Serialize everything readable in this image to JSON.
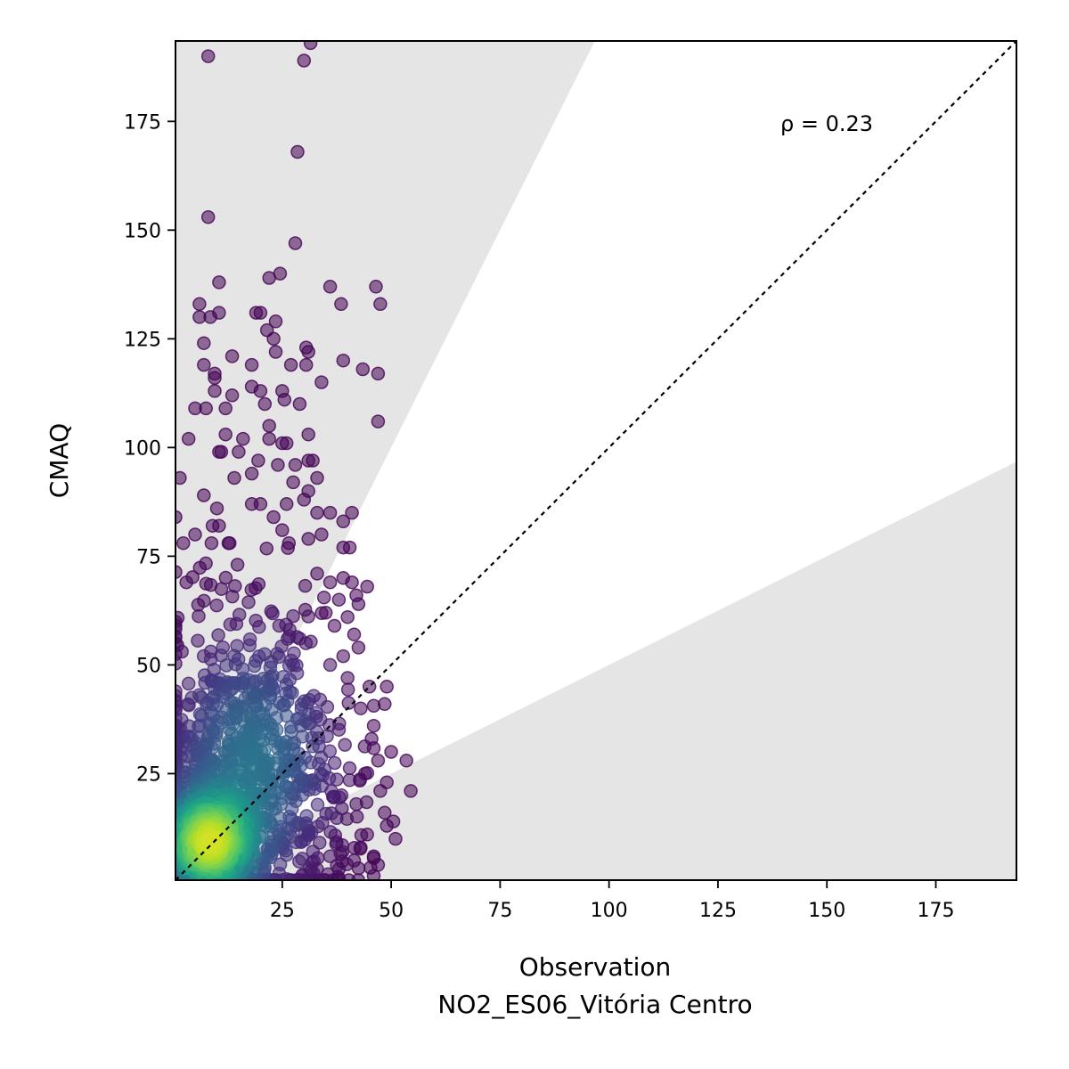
{
  "chart_data": {
    "type": "scatter",
    "xlabel": "Observation",
    "xlabel_sub": "NO2_ES06_Vitória Centro",
    "ylabel": "CMAQ",
    "annotation": "ρ = 0.23",
    "xlim": [
      0.5,
      193.5
    ],
    "ylim": [
      0.5,
      193.5
    ],
    "x_ticks": [
      25,
      50,
      75,
      100,
      125,
      150,
      175
    ],
    "y_ticks": [
      25,
      50,
      75,
      100,
      125,
      150,
      175
    ],
    "identity_line": true,
    "shaded_regions": "outside factor-of-2 cone (y > 2x and y < x/2)",
    "colormap": "viridis (point density)",
    "colors": {
      "shade": "#e5e5e5",
      "low_density": "#440154",
      "high_density": "#fde725"
    },
    "points": [
      {
        "x": 8,
        "y": 190
      },
      {
        "x": 30,
        "y": 189
      },
      {
        "x": 31.5,
        "y": 193
      },
      {
        "x": 28.5,
        "y": 168
      },
      {
        "x": 8,
        "y": 153
      },
      {
        "x": 28,
        "y": 147
      },
      {
        "x": 22,
        "y": 139
      },
      {
        "x": 24.5,
        "y": 140
      },
      {
        "x": 10.5,
        "y": 138
      },
      {
        "x": 36,
        "y": 137
      },
      {
        "x": 46.5,
        "y": 137
      },
      {
        "x": 6,
        "y": 133
      },
      {
        "x": 47.5,
        "y": 133
      },
      {
        "x": 38.5,
        "y": 133
      },
      {
        "x": 10.5,
        "y": 131
      },
      {
        "x": 8.5,
        "y": 130
      },
      {
        "x": 6,
        "y": 130
      },
      {
        "x": 19,
        "y": 131
      },
      {
        "x": 20,
        "y": 131
      },
      {
        "x": 23.5,
        "y": 129
      },
      {
        "x": 21.5,
        "y": 127
      },
      {
        "x": 23,
        "y": 125
      },
      {
        "x": 7,
        "y": 124
      },
      {
        "x": 30.5,
        "y": 123
      },
      {
        "x": 31,
        "y": 122
      },
      {
        "x": 23.5,
        "y": 122
      },
      {
        "x": 13.5,
        "y": 121
      },
      {
        "x": 39,
        "y": 120
      },
      {
        "x": 7,
        "y": 119
      },
      {
        "x": 18,
        "y": 119
      },
      {
        "x": 27,
        "y": 119
      },
      {
        "x": 30.5,
        "y": 119
      },
      {
        "x": 43.5,
        "y": 118
      },
      {
        "x": 47,
        "y": 117
      },
      {
        "x": 9.5,
        "y": 117
      },
      {
        "x": 9.5,
        "y": 116
      },
      {
        "x": 18,
        "y": 114
      },
      {
        "x": 20,
        "y": 113
      },
      {
        "x": 25,
        "y": 113
      },
      {
        "x": 9.5,
        "y": 113
      },
      {
        "x": 34,
        "y": 115
      },
      {
        "x": 13.5,
        "y": 112
      },
      {
        "x": 25.5,
        "y": 111
      },
      {
        "x": 21,
        "y": 110
      },
      {
        "x": 29,
        "y": 110
      },
      {
        "x": 5,
        "y": 109
      },
      {
        "x": 7.5,
        "y": 109
      },
      {
        "x": 12,
        "y": 109
      },
      {
        "x": 47,
        "y": 106
      },
      {
        "x": 22,
        "y": 105
      },
      {
        "x": 3.5,
        "y": 102
      },
      {
        "x": 25,
        "y": 101
      },
      {
        "x": 31,
        "y": 103
      },
      {
        "x": 26,
        "y": 101
      },
      {
        "x": 12,
        "y": 103
      },
      {
        "x": 16,
        "y": 102
      },
      {
        "x": 22,
        "y": 102
      },
      {
        "x": 10.5,
        "y": 99
      },
      {
        "x": 11,
        "y": 99
      },
      {
        "x": 15,
        "y": 99
      },
      {
        "x": 19.5,
        "y": 97
      },
      {
        "x": 24,
        "y": 96
      },
      {
        "x": 28,
        "y": 96
      },
      {
        "x": 31,
        "y": 97
      },
      {
        "x": 32,
        "y": 97
      },
      {
        "x": 1.5,
        "y": 93
      },
      {
        "x": 14,
        "y": 93
      },
      {
        "x": 18,
        "y": 94
      },
      {
        "x": 27.5,
        "y": 92
      },
      {
        "x": 33,
        "y": 93
      },
      {
        "x": 31,
        "y": 90
      },
      {
        "x": 7,
        "y": 89
      },
      {
        "x": 30,
        "y": 88
      },
      {
        "x": 18,
        "y": 87
      },
      {
        "x": 20,
        "y": 87
      },
      {
        "x": 26,
        "y": 87
      },
      {
        "x": 10,
        "y": 86
      },
      {
        "x": 33,
        "y": 85
      },
      {
        "x": 36,
        "y": 85
      },
      {
        "x": 41,
        "y": 85
      },
      {
        "x": 0.5,
        "y": 84
      },
      {
        "x": 23,
        "y": 84
      },
      {
        "x": 39,
        "y": 83
      },
      {
        "x": 9,
        "y": 82
      },
      {
        "x": 10.5,
        "y": 82
      },
      {
        "x": 25,
        "y": 81
      },
      {
        "x": 5,
        "y": 80
      },
      {
        "x": 31,
        "y": 79
      },
      {
        "x": 34,
        "y": 80
      },
      {
        "x": 39,
        "y": 77
      },
      {
        "x": 40.5,
        "y": 77
      },
      {
        "x": 33,
        "y": 71
      },
      {
        "x": 39,
        "y": 70
      },
      {
        "x": 36,
        "y": 69
      },
      {
        "x": 41,
        "y": 69
      },
      {
        "x": 44.5,
        "y": 68
      },
      {
        "x": 42,
        "y": 66
      },
      {
        "x": 3,
        "y": 69
      },
      {
        "x": 38,
        "y": 65
      },
      {
        "x": 42.5,
        "y": 64
      },
      {
        "x": 35,
        "y": 62
      },
      {
        "x": 40,
        "y": 61
      },
      {
        "x": 37,
        "y": 59
      },
      {
        "x": 41.5,
        "y": 57
      },
      {
        "x": 42.5,
        "y": 54
      },
      {
        "x": 39,
        "y": 52
      },
      {
        "x": 36,
        "y": 50
      },
      {
        "x": 40,
        "y": 47
      },
      {
        "x": 45,
        "y": 45
      },
      {
        "x": 49,
        "y": 45
      },
      {
        "x": 43,
        "y": 40
      },
      {
        "x": 48.5,
        "y": 41
      },
      {
        "x": 46,
        "y": 36
      },
      {
        "x": 45.5,
        "y": 33
      },
      {
        "x": 50,
        "y": 30
      },
      {
        "x": 47,
        "y": 28
      },
      {
        "x": 53.5,
        "y": 28
      },
      {
        "x": 54.5,
        "y": 21
      },
      {
        "x": 49,
        "y": 23
      },
      {
        "x": 47.5,
        "y": 21
      },
      {
        "x": 48.5,
        "y": 16
      },
      {
        "x": 50.5,
        "y": 14
      },
      {
        "x": 49,
        "y": 13
      },
      {
        "x": 51,
        "y": 10
      },
      {
        "x": 46,
        "y": 6
      },
      {
        "x": 47,
        "y": 4
      },
      {
        "x": 43,
        "y": 8
      },
      {
        "x": 41.5,
        "y": 5
      },
      {
        "x": 38,
        "y": 3
      },
      {
        "x": 36,
        "y": 6
      },
      {
        "x": 33,
        "y": 3
      },
      {
        "x": 44.5,
        "y": 11
      },
      {
        "x": 42,
        "y": 18
      },
      {
        "x": 44,
        "y": 25
      }
    ]
  }
}
